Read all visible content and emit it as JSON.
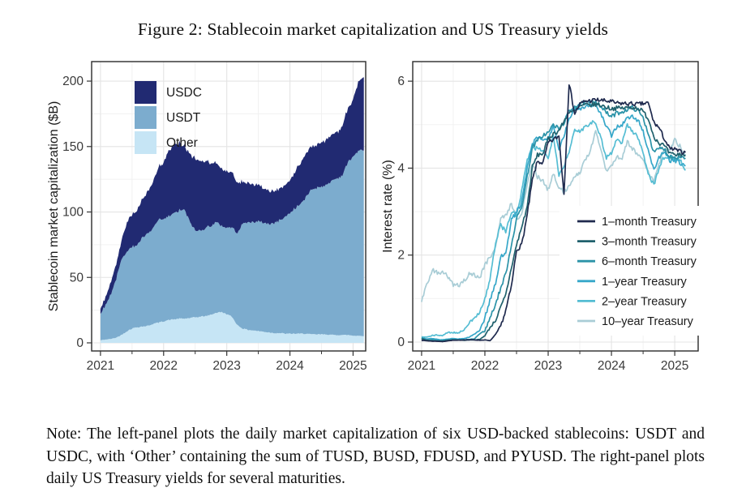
{
  "figure": {
    "title": "Figure 2: Stablecoin market capitalization and US Treasury yields",
    "note": "Note: The left-panel plots the daily market capitalization of six USD-backed stablecoins: USDT and USDC, with ‘Other’ containing the sum of TUSD, BUSD, FDUSD, and PYUSD. The right-panel plots daily US Treasury yields for several maturities."
  },
  "chart_data": [
    {
      "type": "area",
      "stacked": true,
      "title": "",
      "xlabel": "",
      "ylabel": "Stablecoin market capitalization ($B)",
      "xticks": [
        2021,
        2022,
        2023,
        2024,
        2025
      ],
      "xminor": [
        2021.5,
        2022.5,
        2023.5,
        2024.5
      ],
      "yticks": [
        0,
        50,
        100,
        150,
        200
      ],
      "yminor": [
        25,
        75,
        125,
        175
      ],
      "ylim": [
        0,
        212
      ],
      "legend_position": "top-left",
      "legend": [
        "USDC",
        "USDT",
        "Other"
      ],
      "colors": {
        "USDC": "#212a72",
        "USDT": "#7cacce",
        "Other": "#c6e5f5"
      },
      "x": [
        2021.0,
        2021.08,
        2021.17,
        2021.25,
        2021.33,
        2021.42,
        2021.5,
        2021.58,
        2021.67,
        2021.75,
        2021.83,
        2021.92,
        2022.0,
        2022.08,
        2022.17,
        2022.25,
        2022.33,
        2022.42,
        2022.5,
        2022.58,
        2022.67,
        2022.75,
        2022.83,
        2022.92,
        2023.0,
        2023.08,
        2023.17,
        2023.25,
        2023.33,
        2023.42,
        2023.5,
        2023.58,
        2023.67,
        2023.75,
        2023.83,
        2023.92,
        2024.0,
        2024.08,
        2024.17,
        2024.25,
        2024.33,
        2024.42,
        2024.5,
        2024.58,
        2024.67,
        2024.75,
        2024.83,
        2024.92,
        2025.0,
        2025.08,
        2025.17
      ],
      "series": [
        {
          "name": "Other",
          "values": [
            2,
            2.5,
            3,
            4,
            6,
            9,
            11,
            12,
            12.5,
            13,
            14.5,
            15.5,
            16.5,
            17.5,
            18,
            18.5,
            18.5,
            19,
            19.5,
            20,
            20.5,
            21.5,
            23,
            23.5,
            22,
            20,
            13.5,
            11,
            10,
            9.5,
            9,
            8.5,
            8,
            7.5,
            7.5,
            7,
            7,
            7,
            7,
            7,
            6.5,
            6.5,
            6.5,
            6.5,
            6,
            6,
            6,
            6,
            5.5,
            5.5,
            5
          ]
        },
        {
          "name": "USDT",
          "values": [
            21,
            26,
            35,
            45,
            57,
            62,
            62,
            63,
            68,
            70,
            73,
            78,
            78,
            79,
            81,
            82.5,
            83,
            73,
            66,
            66,
            67.5,
            68,
            69,
            66,
            66,
            68,
            71,
            80,
            82,
            83,
            83.5,
            83.5,
            83,
            84,
            86,
            89,
            92,
            96,
            99,
            104,
            110,
            112,
            113,
            114,
            118,
            120,
            122,
            132,
            137,
            141,
            142
          ]
        },
        {
          "name": "USDC",
          "values": [
            4,
            6,
            9,
            11,
            14,
            22,
            25,
            27,
            29,
            32,
            35,
            40,
            43,
            50,
            52,
            51,
            49,
            52,
            55,
            53,
            51,
            48,
            45,
            43,
            43,
            42,
            38,
            32,
            30,
            29,
            27.5,
            26,
            25.5,
            25,
            24.5,
            24.5,
            25,
            28,
            31,
            33,
            33.5,
            32.5,
            33.5,
            34.5,
            35.5,
            35,
            37.5,
            41.5,
            44,
            52,
            56
          ]
        }
      ]
    },
    {
      "type": "line",
      "title": "",
      "xlabel": "",
      "ylabel": "Interest rate (%)",
      "xticks": [
        2021,
        2022,
        2023,
        2024,
        2025
      ],
      "xminor": [
        2021.5,
        2022.5,
        2023.5,
        2024.5
      ],
      "yticks": [
        0,
        2,
        4,
        6
      ],
      "yminor": [
        1,
        3,
        5
      ],
      "ylim": [
        0,
        6.05
      ],
      "legend_position": "middle-right",
      "x": [
        2021.0,
        2021.08,
        2021.17,
        2021.25,
        2021.33,
        2021.42,
        2021.5,
        2021.58,
        2021.67,
        2021.75,
        2021.83,
        2021.92,
        2022.0,
        2022.08,
        2022.17,
        2022.25,
        2022.33,
        2022.42,
        2022.5,
        2022.58,
        2022.67,
        2022.75,
        2022.83,
        2022.92,
        2023.0,
        2023.08,
        2023.17,
        2023.25,
        2023.33,
        2023.42,
        2023.5,
        2023.58,
        2023.67,
        2023.75,
        2023.83,
        2023.92,
        2024.0,
        2024.08,
        2024.17,
        2024.25,
        2024.33,
        2024.42,
        2024.5,
        2024.58,
        2024.67,
        2024.75,
        2024.83,
        2024.92,
        2025.0,
        2025.08,
        2025.17
      ],
      "series": [
        {
          "name": "1–month Treasury",
          "color": "#1f2a4e",
          "values": [
            0.04,
            0.03,
            0.02,
            0.02,
            0.01,
            0.03,
            0.04,
            0.04,
            0.05,
            0.05,
            0.05,
            0.04,
            0.05,
            0.03,
            0.17,
            0.37,
            0.72,
            1.28,
            2.12,
            2.23,
            2.93,
            3.72,
            4.15,
            4.12,
            4.58,
            4.65,
            4.74,
            3.4,
            5.95,
            5.25,
            5.47,
            5.54,
            5.55,
            5.57,
            5.56,
            5.54,
            5.53,
            5.49,
            5.49,
            5.48,
            5.48,
            5.47,
            5.48,
            5.5,
            5.05,
            4.93,
            4.69,
            4.44,
            4.43,
            4.38,
            4.36
          ]
        },
        {
          "name": "3–month Treasury",
          "color": "#20616d",
          "values": [
            0.08,
            0.04,
            0.03,
            0.02,
            0.02,
            0.04,
            0.05,
            0.05,
            0.04,
            0.05,
            0.05,
            0.06,
            0.15,
            0.33,
            0.5,
            0.79,
            1.08,
            1.72,
            2.23,
            2.63,
            3.13,
            4.02,
            4.3,
            4.34,
            4.67,
            4.79,
            4.86,
            5.07,
            5.3,
            5.3,
            5.42,
            5.45,
            5.45,
            5.47,
            5.45,
            5.4,
            5.37,
            5.38,
            5.38,
            5.39,
            5.4,
            5.38,
            5.3,
            5.15,
            4.73,
            4.58,
            4.52,
            4.33,
            4.3,
            4.32,
            4.3
          ]
        },
        {
          "name": "6–month Treasury",
          "color": "#2b93a8",
          "values": [
            0.09,
            0.05,
            0.05,
            0.04,
            0.03,
            0.05,
            0.05,
            0.05,
            0.05,
            0.06,
            0.07,
            0.19,
            0.26,
            0.55,
            0.88,
            1.24,
            1.57,
            2.25,
            2.83,
            3.1,
            3.81,
            4.47,
            4.63,
            4.76,
            4.81,
            5.0,
            4.9,
            5.05,
            5.3,
            5.43,
            5.47,
            5.5,
            5.5,
            5.55,
            5.43,
            5.27,
            5.18,
            5.26,
            5.3,
            5.35,
            5.39,
            5.33,
            5.15,
            4.82,
            4.35,
            4.45,
            4.45,
            4.27,
            4.25,
            4.27,
            4.23
          ]
        },
        {
          "name": "1–year Treasury",
          "color": "#36a7c9",
          "values": [
            0.1,
            0.07,
            0.08,
            0.06,
            0.05,
            0.07,
            0.08,
            0.07,
            0.08,
            0.11,
            0.18,
            0.28,
            0.55,
            0.97,
            1.33,
            1.95,
            2.08,
            2.8,
            3.0,
            3.2,
            4.0,
            4.55,
            4.7,
            4.65,
            4.68,
            4.98,
            4.4,
            4.75,
            5.1,
            5.4,
            5.37,
            5.42,
            5.45,
            5.45,
            5.25,
            4.95,
            4.75,
            4.95,
            5.0,
            5.15,
            5.18,
            5.1,
            4.85,
            4.42,
            3.95,
            4.25,
            4.35,
            4.18,
            4.17,
            4.12,
            4.05
          ]
        },
        {
          "name": "2–year Treasury",
          "color": "#55bdd3",
          "values": [
            0.12,
            0.11,
            0.15,
            0.16,
            0.15,
            0.22,
            0.22,
            0.21,
            0.28,
            0.45,
            0.52,
            0.72,
            0.99,
            1.44,
            2.28,
            2.7,
            2.53,
            3.0,
            2.9,
            3.45,
            4.2,
            4.45,
            4.45,
            4.42,
            4.2,
            4.8,
            3.85,
            4.05,
            4.4,
            4.85,
            4.85,
            4.95,
            5.05,
            5.07,
            4.7,
            4.25,
            4.35,
            4.65,
            4.6,
            5.0,
            4.85,
            4.7,
            4.35,
            3.9,
            3.6,
            4.0,
            4.25,
            4.25,
            4.25,
            4.2,
            3.95
          ]
        },
        {
          "name": "10–year Treasury",
          "color": "#a9cdd6",
          "values": [
            0.95,
            1.3,
            1.65,
            1.6,
            1.6,
            1.5,
            1.3,
            1.3,
            1.4,
            1.58,
            1.55,
            1.47,
            1.78,
            1.95,
            2.2,
            2.85,
            2.9,
            3.2,
            2.85,
            2.9,
            3.65,
            4.1,
            3.8,
            3.7,
            3.5,
            3.9,
            3.55,
            3.45,
            3.6,
            3.78,
            3.9,
            4.2,
            4.4,
            4.85,
            4.45,
            3.95,
            4.05,
            4.25,
            4.25,
            4.6,
            4.45,
            4.3,
            4.2,
            3.9,
            3.7,
            4.1,
            4.4,
            4.4,
            4.65,
            4.5,
            4.3
          ]
        }
      ]
    }
  ]
}
